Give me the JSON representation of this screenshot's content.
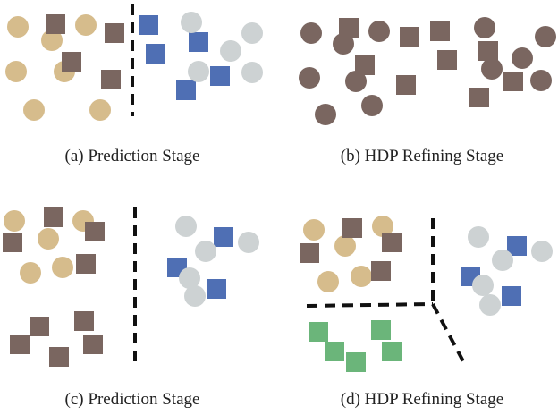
{
  "colors": {
    "tan": "#d6bc8c",
    "brown": "#7a6660",
    "blue": "#4f6fb4",
    "gray": "#cdd2d3",
    "green": "#6bb57a",
    "line": "#111111"
  },
  "panels": [
    {
      "id": "a",
      "caption": "(a)  Prediction Stage"
    },
    {
      "id": "b",
      "caption": "(b)  HDP Refining Stage"
    },
    {
      "id": "c",
      "caption": "(c)  Prediction Stage"
    },
    {
      "id": "d",
      "caption": "(d)  HDP Refining Stage"
    }
  ]
}
